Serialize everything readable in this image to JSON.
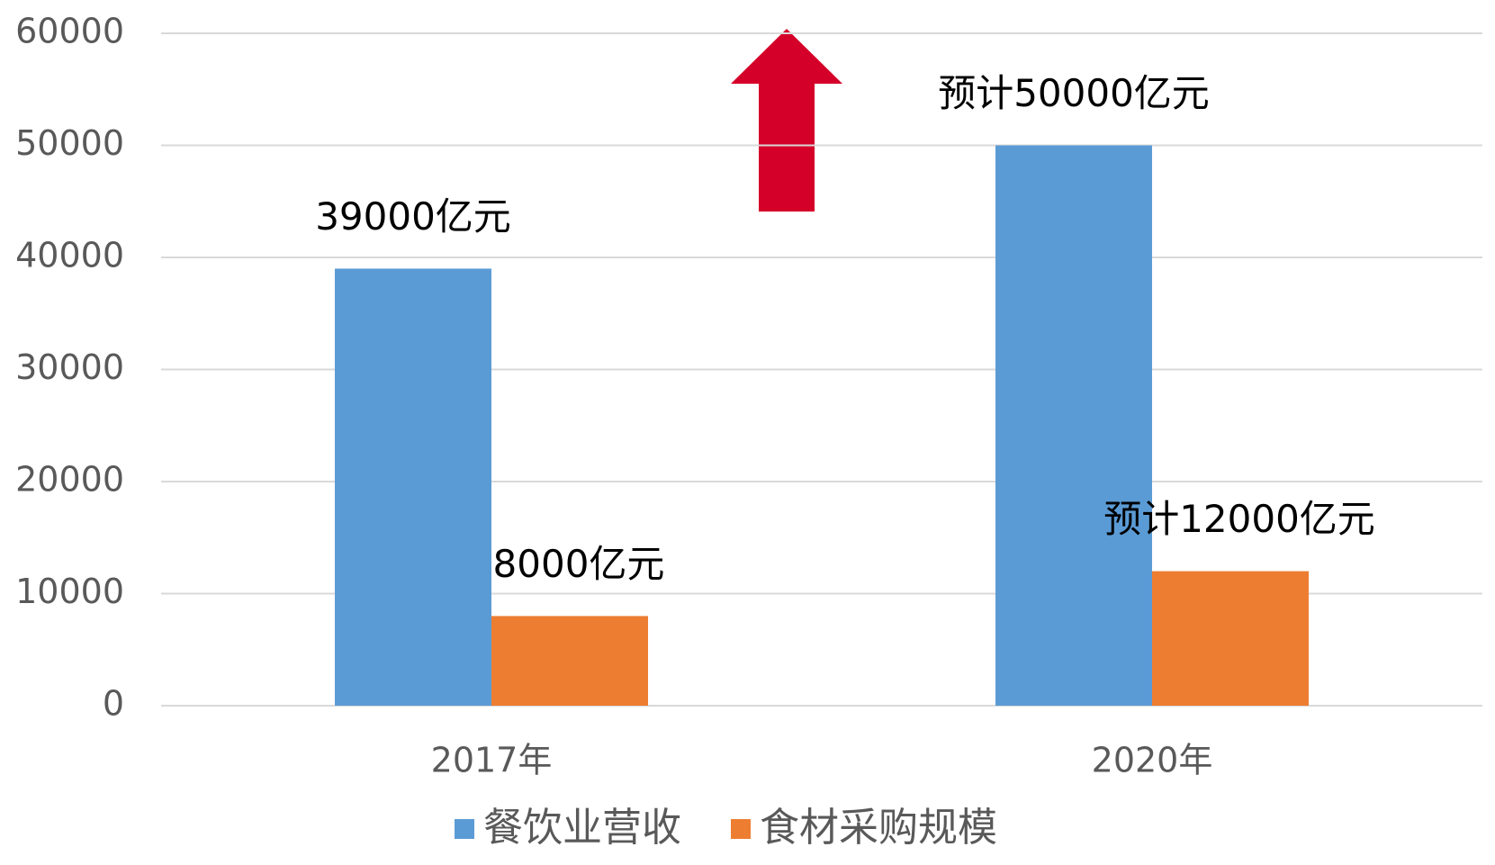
{
  "chart_data": {
    "type": "bar",
    "categories": [
      "2017年",
      "2020年"
    ],
    "series": [
      {
        "name": "餐饮业营收",
        "color": "#5b9bd5",
        "values": [
          39000,
          50000
        ],
        "value_labels": [
          "39000亿元",
          "预计50000亿元"
        ]
      },
      {
        "name": "食材采购规模",
        "color": "#ed7d31",
        "values": [
          8000,
          12000
        ],
        "value_labels": [
          "8000亿元",
          "预计12000亿元"
        ]
      }
    ],
    "ylim": [
      0,
      60000
    ],
    "yticks": [
      0,
      10000,
      20000,
      30000,
      40000,
      50000,
      60000
    ],
    "grid": true,
    "legend": "bottom"
  }
}
